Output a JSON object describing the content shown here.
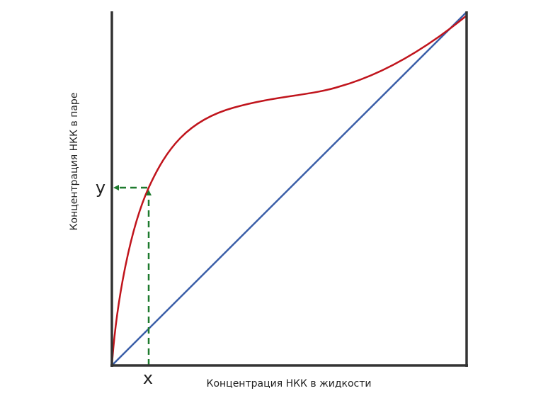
{
  "axes": {
    "x_label": "Концентрация НКК в жидкости",
    "y_label": "Концентрация НКК в паре"
  },
  "markers": {
    "x": "x",
    "y": "y"
  }
}
